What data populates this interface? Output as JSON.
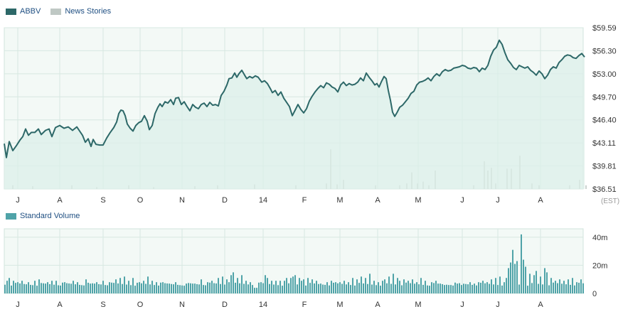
{
  "legend": {
    "series_label": "ABBV",
    "news_label": "News Stories",
    "volume_label": "Standard Volume",
    "series_color": "#2d6868",
    "news_color": "#bfc8c4",
    "volume_color": "#4fa3a8"
  },
  "timezone_label": "(EST)",
  "chart_data": [
    {
      "type": "line",
      "series": [
        {
          "name": "ABBV"
        }
      ],
      "x_tick_labels": [
        "J",
        "A",
        "S",
        "O",
        "N",
        "D",
        "14",
        "F",
        "M",
        "A",
        "M",
        "J",
        "J",
        "A"
      ],
      "y_tick_labels": [
        "$59.59",
        "$56.30",
        "$53.00",
        "$49.70",
        "$46.40",
        "$43.11",
        "$39.81",
        "$36.51"
      ],
      "y_ticks": [
        59.59,
        56.3,
        53.0,
        49.7,
        46.4,
        43.11,
        39.81,
        36.51
      ],
      "ylim": [
        36.51,
        59.59
      ],
      "y_axis_position": "right",
      "grid": true,
      "waypoints": [
        [
          0,
          43.0
        ],
        [
          3,
          41.0
        ],
        [
          7,
          43.3
        ],
        [
          12,
          42.0
        ],
        [
          17,
          42.7
        ],
        [
          22,
          43.5
        ],
        [
          26,
          44.0
        ],
        [
          30,
          45.1
        ],
        [
          34,
          44.2
        ],
        [
          38,
          44.6
        ],
        [
          43,
          44.6
        ],
        [
          48,
          45.1
        ],
        [
          52,
          44.3
        ],
        [
          58,
          44.9
        ],
        [
          63,
          45.1
        ],
        [
          67,
          44.0
        ],
        [
          72,
          45.3
        ],
        [
          78,
          45.6
        ],
        [
          84,
          45.2
        ],
        [
          90,
          45.4
        ],
        [
          96,
          44.9
        ],
        [
          102,
          45.4
        ],
        [
          106,
          44.8
        ],
        [
          110,
          44.2
        ],
        [
          114,
          43.2
        ],
        [
          118,
          43.7
        ],
        [
          122,
          42.6
        ],
        [
          125,
          43.6
        ],
        [
          129,
          42.9
        ],
        [
          134,
          42.8
        ],
        [
          139,
          42.8
        ],
        [
          144,
          43.8
        ],
        [
          149,
          44.6
        ],
        [
          154,
          45.3
        ],
        [
          158,
          46.1
        ],
        [
          161,
          47.3
        ],
        [
          164,
          47.8
        ],
        [
          167,
          47.7
        ],
        [
          170,
          47.0
        ],
        [
          173,
          45.8
        ],
        [
          177,
          45.2
        ],
        [
          181,
          44.8
        ],
        [
          185,
          45.6
        ],
        [
          189,
          46.0
        ],
        [
          193,
          46.2
        ],
        [
          197,
          47.0
        ],
        [
          201,
          46.2
        ],
        [
          204,
          45.0
        ],
        [
          208,
          45.6
        ],
        [
          212,
          47.3
        ],
        [
          216,
          48.2
        ],
        [
          219,
          48.7
        ],
        [
          222,
          48.3
        ],
        [
          226,
          49.0
        ],
        [
          230,
          48.8
        ],
        [
          234,
          49.3
        ],
        [
          238,
          48.6
        ],
        [
          241,
          49.5
        ],
        [
          245,
          49.6
        ],
        [
          249,
          48.6
        ],
        [
          253,
          49.0
        ],
        [
          257,
          48.3
        ],
        [
          261,
          47.7
        ],
        [
          265,
          48.6
        ],
        [
          269,
          48.2
        ],
        [
          273,
          48.0
        ],
        [
          277,
          48.6
        ],
        [
          281,
          48.8
        ],
        [
          285,
          48.3
        ],
        [
          289,
          48.9
        ],
        [
          293,
          48.5
        ],
        [
          297,
          48.6
        ],
        [
          301,
          48.4
        ],
        [
          305,
          49.9
        ],
        [
          309,
          50.5
        ],
        [
          313,
          51.4
        ],
        [
          316,
          52.3
        ],
        [
          320,
          52.4
        ],
        [
          324,
          53.1
        ],
        [
          327,
          52.5
        ],
        [
          330,
          53.0
        ],
        [
          334,
          53.5
        ],
        [
          338,
          52.8
        ],
        [
          341,
          52.3
        ],
        [
          345,
          52.6
        ],
        [
          349,
          52.4
        ],
        [
          353,
          52.7
        ],
        [
          357,
          52.5
        ],
        [
          362,
          51.8
        ],
        [
          366,
          52.0
        ],
        [
          370,
          51.6
        ],
        [
          374,
          50.9
        ],
        [
          377,
          50.3
        ],
        [
          381,
          50.6
        ],
        [
          385,
          49.9
        ],
        [
          389,
          50.4
        ],
        [
          393,
          49.5
        ],
        [
          397,
          48.9
        ],
        [
          401,
          48.3
        ],
        [
          405,
          47.0
        ],
        [
          409,
          47.8
        ],
        [
          413,
          48.6
        ],
        [
          417,
          47.9
        ],
        [
          421,
          47.4
        ],
        [
          425,
          48.0
        ],
        [
          429,
          49.1
        ],
        [
          433,
          49.8
        ],
        [
          437,
          50.4
        ],
        [
          441,
          50.9
        ],
        [
          445,
          51.3
        ],
        [
          449,
          51.0
        ],
        [
          453,
          51.7
        ],
        [
          457,
          51.5
        ],
        [
          461,
          51.1
        ],
        [
          465,
          50.9
        ],
        [
          469,
          50.4
        ],
        [
          473,
          51.4
        ],
        [
          477,
          51.8
        ],
        [
          481,
          51.3
        ],
        [
          485,
          51.6
        ],
        [
          489,
          51.4
        ],
        [
          493,
          51.5
        ],
        [
          497,
          51.8
        ],
        [
          501,
          52.4
        ],
        [
          505,
          52.0
        ],
        [
          509,
          53.1
        ],
        [
          513,
          52.5
        ],
        [
          517,
          52.0
        ],
        [
          521,
          51.4
        ],
        [
          524,
          51.6
        ],
        [
          527,
          51.1
        ],
        [
          530,
          51.8
        ],
        [
          534,
          52.6
        ],
        [
          537,
          52.3
        ],
        [
          540,
          50.6
        ],
        [
          543,
          49.2
        ],
        [
          546,
          47.5
        ],
        [
          549,
          46.9
        ],
        [
          552,
          47.4
        ],
        [
          556,
          48.2
        ],
        [
          560,
          48.5
        ],
        [
          564,
          49.0
        ],
        [
          568,
          49.5
        ],
        [
          572,
          50.2
        ],
        [
          576,
          50.5
        ],
        [
          580,
          51.4
        ],
        [
          584,
          51.8
        ],
        [
          588,
          51.9
        ],
        [
          592,
          52.1
        ],
        [
          596,
          52.4
        ],
        [
          600,
          52.0
        ],
        [
          604,
          52.6
        ],
        [
          608,
          53.0
        ],
        [
          612,
          52.7
        ],
        [
          616,
          53.3
        ],
        [
          620,
          53.6
        ],
        [
          624,
          53.4
        ],
        [
          628,
          53.5
        ],
        [
          632,
          53.8
        ],
        [
          636,
          53.9
        ],
        [
          640,
          54.0
        ],
        [
          644,
          54.2
        ],
        [
          648,
          54.1
        ],
        [
          652,
          53.8
        ],
        [
          656,
          53.7
        ],
        [
          660,
          53.9
        ],
        [
          664,
          53.8
        ],
        [
          668,
          53.3
        ],
        [
          672,
          53.8
        ],
        [
          676,
          53.6
        ],
        [
          680,
          54.2
        ],
        [
          684,
          55.5
        ],
        [
          688,
          56.4
        ],
        [
          692,
          56.8
        ],
        [
          696,
          57.8
        ],
        [
          700,
          57.2
        ],
        [
          704,
          56.0
        ],
        [
          708,
          55.0
        ],
        [
          712,
          54.5
        ],
        [
          716,
          53.9
        ],
        [
          720,
          53.6
        ],
        [
          724,
          54.2
        ],
        [
          728,
          54.0
        ],
        [
          732,
          53.8
        ],
        [
          736,
          54.0
        ],
        [
          740,
          53.5
        ],
        [
          744,
          53.2
        ],
        [
          748,
          52.8
        ],
        [
          752,
          53.4
        ],
        [
          756,
          53.0
        ],
        [
          760,
          52.3
        ],
        [
          764,
          52.8
        ],
        [
          768,
          53.6
        ],
        [
          772,
          54.0
        ],
        [
          776,
          53.8
        ],
        [
          780,
          54.6
        ],
        [
          784,
          55.0
        ],
        [
          788,
          55.5
        ],
        [
          792,
          55.7
        ],
        [
          796,
          55.6
        ],
        [
          800,
          55.3
        ],
        [
          804,
          55.2
        ],
        [
          808,
          55.6
        ],
        [
          812,
          55.9
        ],
        [
          816,
          55.4
        ]
      ]
    },
    {
      "type": "bar",
      "series": [
        {
          "name": "Standard Volume"
        }
      ],
      "y_tick_labels": [
        "40m",
        "20m",
        "0"
      ],
      "y_ticks": [
        40,
        20,
        0
      ],
      "ylim": [
        0,
        46
      ],
      "y_axis_position": "right",
      "x_tick_labels": [
        "J",
        "A",
        "S",
        "O",
        "N",
        "D",
        "14",
        "F",
        "M",
        "A",
        "M",
        "J",
        "J",
        "A"
      ],
      "grid": true,
      "volume_base": 5.5,
      "volume_spikes": [
        [
          3,
          9
        ],
        [
          8,
          11
        ],
        [
          13,
          9
        ],
        [
          19,
          8
        ],
        [
          26,
          9
        ],
        [
          34,
          8
        ],
        [
          43,
          9
        ],
        [
          50,
          10
        ],
        [
          60,
          8
        ],
        [
          67,
          9
        ],
        [
          74,
          9
        ],
        [
          84,
          8
        ],
        [
          96,
          9
        ],
        [
          104,
          8
        ],
        [
          114,
          10
        ],
        [
          122,
          7
        ],
        [
          131,
          8
        ],
        [
          139,
          9
        ],
        [
          148,
          8
        ],
        [
          156,
          10
        ],
        [
          163,
          11
        ],
        [
          170,
          12
        ],
        [
          176,
          9
        ],
        [
          181,
          11
        ],
        [
          189,
          8
        ],
        [
          196,
          9
        ],
        [
          202,
          12
        ],
        [
          208,
          9
        ],
        [
          214,
          8
        ],
        [
          224,
          8
        ],
        [
          232,
          7
        ],
        [
          242,
          8
        ],
        [
          255,
          7
        ],
        [
          268,
          7
        ],
        [
          276,
          10
        ],
        [
          285,
          8
        ],
        [
          293,
          9
        ],
        [
          300,
          11
        ],
        [
          306,
          12
        ],
        [
          312,
          10
        ],
        [
          316,
          8
        ],
        [
          320,
          13
        ],
        [
          322,
          15
        ],
        [
          328,
          11
        ],
        [
          334,
          13
        ],
        [
          340,
          9
        ],
        [
          346,
          8
        ],
        [
          352,
          4
        ],
        [
          356,
          4
        ],
        [
          360,
          8
        ],
        [
          366,
          13
        ],
        [
          370,
          11
        ],
        [
          376,
          9
        ],
        [
          382,
          9
        ],
        [
          388,
          9
        ],
        [
          394,
          9
        ],
        [
          398,
          11
        ],
        [
          402,
          11
        ],
        [
          406,
          12
        ],
        [
          410,
          13
        ],
        [
          414,
          11
        ],
        [
          418,
          9
        ],
        [
          422,
          10
        ],
        [
          426,
          11
        ],
        [
          432,
          10
        ],
        [
          438,
          9
        ],
        [
          446,
          7
        ],
        [
          454,
          8
        ],
        [
          460,
          9
        ],
        [
          466,
          8
        ],
        [
          472,
          8
        ],
        [
          478,
          9
        ],
        [
          484,
          8
        ],
        [
          490,
          11
        ],
        [
          496,
          10
        ],
        [
          502,
          12
        ],
        [
          508,
          11
        ],
        [
          514,
          14
        ],
        [
          520,
          9
        ],
        [
          526,
          8
        ],
        [
          532,
          9
        ],
        [
          536,
          10
        ],
        [
          540,
          12
        ],
        [
          546,
          14
        ],
        [
          552,
          11
        ],
        [
          556,
          9
        ],
        [
          562,
          10
        ],
        [
          568,
          9
        ],
        [
          574,
          10
        ],
        [
          580,
          8
        ],
        [
          586,
          11
        ],
        [
          592,
          9
        ],
        [
          600,
          8
        ],
        [
          606,
          9
        ],
        [
          612,
          7
        ],
        [
          620,
          6
        ],
        [
          628,
          6
        ],
        [
          636,
          7
        ],
        [
          644,
          6
        ],
        [
          654,
          8
        ],
        [
          660,
          7
        ],
        [
          668,
          8
        ],
        [
          674,
          9
        ],
        [
          680,
          8
        ],
        [
          686,
          10
        ],
        [
          692,
          11
        ],
        [
          698,
          12
        ],
        [
          702,
          8
        ],
        [
          706,
          11
        ],
        [
          710,
          18
        ],
        [
          713,
          22
        ],
        [
          716,
          31
        ],
        [
          719,
          21
        ],
        [
          722,
          23
        ],
        [
          726,
          42
        ],
        [
          729,
          24
        ],
        [
          733,
          19
        ],
        [
          738,
          14
        ],
        [
          744,
          13
        ],
        [
          749,
          16
        ],
        [
          754,
          12
        ],
        [
          759,
          18
        ],
        [
          764,
          15
        ],
        [
          770,
          11
        ],
        [
          776,
          9
        ],
        [
          782,
          10
        ],
        [
          788,
          9
        ],
        [
          794,
          10
        ],
        [
          800,
          11
        ],
        [
          806,
          8
        ],
        [
          812,
          10
        ],
        [
          816,
          9
        ]
      ]
    }
  ],
  "news_stories": [
    [
      12,
      2
    ],
    [
      40,
      1.5
    ],
    [
      95,
      2
    ],
    [
      130,
      1
    ],
    [
      175,
      2
    ],
    [
      210,
      1
    ],
    [
      268,
      1.5
    ],
    [
      300,
      2
    ],
    [
      352,
      2.5
    ],
    [
      410,
      2
    ],
    [
      453,
      3
    ],
    [
      459,
      21.5
    ],
    [
      468,
      2.5
    ],
    [
      477,
      5
    ],
    [
      522,
      2
    ],
    [
      556,
      2
    ],
    [
      566,
      3
    ],
    [
      573,
      9
    ],
    [
      581,
      3
    ],
    [
      589,
      4
    ],
    [
      597,
      2
    ],
    [
      606,
      10
    ],
    [
      660,
      2
    ],
    [
      675,
      15
    ],
    [
      680,
      10
    ],
    [
      685,
      11.5
    ],
    [
      691,
      3
    ],
    [
      707,
      11
    ],
    [
      713,
      11
    ],
    [
      725,
      18
    ],
    [
      742,
      3
    ],
    [
      752,
      2
    ],
    [
      795,
      2
    ],
    [
      809,
      5
    ],
    [
      818,
      2
    ]
  ]
}
